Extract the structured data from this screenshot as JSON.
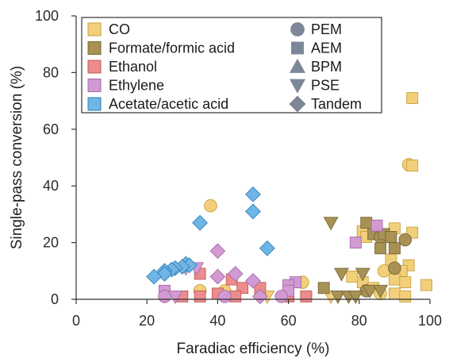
{
  "chart_data": {
    "type": "scatter",
    "xlabel": "Faradiac efficiency (%)",
    "ylabel": "Single-pass conversion (%)",
    "xlim": [
      0,
      100
    ],
    "ylim": [
      0,
      100
    ],
    "x_ticks": [
      "0",
      "20",
      "40",
      "60",
      "80",
      "100"
    ],
    "y_ticks": [
      "0",
      "20",
      "40",
      "60",
      "80",
      "100"
    ],
    "legend_position": "top-left",
    "products": [
      {
        "key": "co",
        "name": "CO",
        "fill": "#f2cf7a",
        "stroke": "#c9a23d"
      },
      {
        "key": "formate",
        "name": "Formate/formic acid",
        "fill": "#a79155",
        "stroke": "#7b6a36"
      },
      {
        "key": "ethanol",
        "name": "Ethanol",
        "fill": "#ec8c8c",
        "stroke": "#c25c5c"
      },
      {
        "key": "ethylene",
        "name": "Ethylene",
        "fill": "#d19ad3",
        "stroke": "#a76aab"
      },
      {
        "key": "acetate",
        "name": "Acetate/acetic acid",
        "fill": "#6fb6e6",
        "stroke": "#2f7fb8"
      }
    ],
    "configurations": [
      {
        "key": "pem",
        "name": "PEM",
        "shape": "circle"
      },
      {
        "key": "aem",
        "name": "AEM",
        "shape": "square"
      },
      {
        "key": "bpm",
        "name": "BPM",
        "shape": "triangle-up"
      },
      {
        "key": "pse",
        "name": "PSE",
        "shape": "triangle-down"
      },
      {
        "key": "tandem",
        "name": "Tandem",
        "shape": "diamond"
      }
    ],
    "marker_color": "#7d8797",
    "series": [
      {
        "product": "co",
        "points": [
          {
            "x": 95,
            "y": 71,
            "shape": "square"
          },
          {
            "x": 94,
            "y": 47.5,
            "shape": "circle"
          },
          {
            "x": 95,
            "y": 47.2,
            "shape": "square"
          },
          {
            "x": 38,
            "y": 33,
            "shape": "circle"
          },
          {
            "x": 90,
            "y": 25,
            "shape": "square"
          },
          {
            "x": 95,
            "y": 23.5,
            "shape": "square"
          },
          {
            "x": 81,
            "y": 24,
            "shape": "square"
          },
          {
            "x": 82,
            "y": 22,
            "shape": "square"
          },
          {
            "x": 90,
            "y": 18,
            "shape": "square"
          },
          {
            "x": 89,
            "y": 14,
            "shape": "square"
          },
          {
            "x": 94,
            "y": 12,
            "shape": "square"
          },
          {
            "x": 92,
            "y": 10,
            "shape": "square"
          },
          {
            "x": 90,
            "y": 7,
            "shape": "square"
          },
          {
            "x": 93,
            "y": 6,
            "shape": "square"
          },
          {
            "x": 99,
            "y": 5,
            "shape": "square"
          },
          {
            "x": 81,
            "y": 6,
            "shape": "square"
          },
          {
            "x": 78,
            "y": 8,
            "shape": "square"
          },
          {
            "x": 64,
            "y": 6,
            "shape": "circle"
          },
          {
            "x": 84,
            "y": 4,
            "shape": "square"
          },
          {
            "x": 86,
            "y": 2,
            "shape": "circle"
          },
          {
            "x": 90,
            "y": 2,
            "shape": "square"
          },
          {
            "x": 35,
            "y": 3,
            "shape": "circle"
          },
          {
            "x": 42,
            "y": 3,
            "shape": "circle"
          },
          {
            "x": 54,
            "y": 1,
            "shape": "triangle-down"
          },
          {
            "x": 65,
            "y": 1,
            "shape": "square"
          },
          {
            "x": 72,
            "y": 1,
            "shape": "triangle-down"
          },
          {
            "x": 93,
            "y": 1,
            "shape": "square"
          },
          {
            "x": 87,
            "y": 10,
            "shape": "circle"
          }
        ]
      },
      {
        "product": "formate",
        "points": [
          {
            "x": 82,
            "y": 27,
            "shape": "square"
          },
          {
            "x": 72,
            "y": 27,
            "shape": "triangle-down"
          },
          {
            "x": 84,
            "y": 23,
            "shape": "square"
          },
          {
            "x": 86,
            "y": 22,
            "shape": "circle"
          },
          {
            "x": 87,
            "y": 23,
            "shape": "square"
          },
          {
            "x": 89,
            "y": 22,
            "shape": "square"
          },
          {
            "x": 93,
            "y": 21,
            "shape": "circle"
          },
          {
            "x": 86,
            "y": 18,
            "shape": "square"
          },
          {
            "x": 90,
            "y": 18,
            "shape": "square"
          },
          {
            "x": 90,
            "y": 11,
            "shape": "circle"
          },
          {
            "x": 75,
            "y": 9,
            "shape": "triangle-down"
          },
          {
            "x": 81,
            "y": 9,
            "shape": "triangle-down"
          },
          {
            "x": 70,
            "y": 4,
            "shape": "square"
          },
          {
            "x": 82,
            "y": 3,
            "shape": "circle"
          },
          {
            "x": 83,
            "y": 3,
            "shape": "triangle-down"
          },
          {
            "x": 74,
            "y": 1,
            "shape": "triangle-down"
          },
          {
            "x": 77,
            "y": 1,
            "shape": "triangle-down"
          },
          {
            "x": 79,
            "y": 1,
            "shape": "triangle-down"
          },
          {
            "x": 86,
            "y": 3,
            "shape": "triangle-down"
          }
        ]
      },
      {
        "product": "ethanol",
        "points": [
          {
            "x": 35,
            "y": 9,
            "shape": "square"
          },
          {
            "x": 44,
            "y": 7,
            "shape": "square"
          },
          {
            "x": 47,
            "y": 4,
            "shape": "square"
          },
          {
            "x": 52,
            "y": 4,
            "shape": "square"
          },
          {
            "x": 40,
            "y": 2,
            "shape": "square"
          },
          {
            "x": 30,
            "y": 1,
            "shape": "square"
          },
          {
            "x": 35,
            "y": 1,
            "shape": "square"
          },
          {
            "x": 45,
            "y": 1,
            "shape": "square"
          },
          {
            "x": 60,
            "y": 1,
            "shape": "square"
          },
          {
            "x": 65,
            "y": 1,
            "shape": "square"
          }
        ]
      },
      {
        "product": "ethylene",
        "points": [
          {
            "x": 85,
            "y": 26,
            "shape": "square"
          },
          {
            "x": 79,
            "y": 20,
            "shape": "square"
          },
          {
            "x": 40,
            "y": 17,
            "shape": "diamond"
          },
          {
            "x": 34,
            "y": 11,
            "shape": "triangle-down"
          },
          {
            "x": 31,
            "y": 11,
            "shape": "triangle-down"
          },
          {
            "x": 45,
            "y": 9,
            "shape": "diamond"
          },
          {
            "x": 40,
            "y": 8,
            "shape": "diamond"
          },
          {
            "x": 50,
            "y": 6.5,
            "shape": "diamond"
          },
          {
            "x": 62,
            "y": 6,
            "shape": "square"
          },
          {
            "x": 60,
            "y": 5,
            "shape": "square"
          },
          {
            "x": 25,
            "y": 3,
            "shape": "square"
          },
          {
            "x": 60,
            "y": 3,
            "shape": "square"
          },
          {
            "x": 25,
            "y": 1,
            "shape": "circle"
          },
          {
            "x": 28,
            "y": 1,
            "shape": "triangle-down"
          },
          {
            "x": 42,
            "y": 1,
            "shape": "circle"
          },
          {
            "x": 52,
            "y": 1,
            "shape": "diamond"
          },
          {
            "x": 58,
            "y": 1,
            "shape": "circle"
          }
        ]
      },
      {
        "product": "acetate",
        "points": [
          {
            "x": 50,
            "y": 37,
            "shape": "diamond"
          },
          {
            "x": 50,
            "y": 31,
            "shape": "diamond"
          },
          {
            "x": 35,
            "y": 27,
            "shape": "diamond"
          },
          {
            "x": 54,
            "y": 18,
            "shape": "diamond"
          },
          {
            "x": 31,
            "y": 12.5,
            "shape": "diamond"
          },
          {
            "x": 32,
            "y": 12,
            "shape": "diamond"
          },
          {
            "x": 30,
            "y": 11.5,
            "shape": "diamond"
          },
          {
            "x": 28,
            "y": 11,
            "shape": "diamond"
          },
          {
            "x": 27,
            "y": 10.5,
            "shape": "diamond"
          },
          {
            "x": 25,
            "y": 10,
            "shape": "diamond"
          },
          {
            "x": 25,
            "y": 9,
            "shape": "diamond"
          },
          {
            "x": 22,
            "y": 8,
            "shape": "diamond"
          }
        ]
      }
    ]
  }
}
